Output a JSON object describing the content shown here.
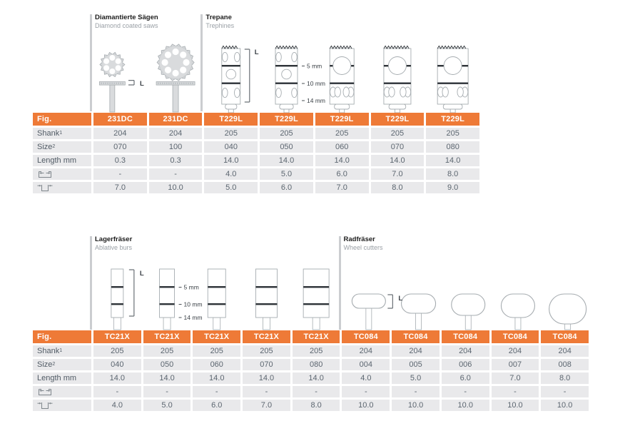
{
  "colors": {
    "accent": "#ee7a37",
    "cell_bg": "#e9e9eb",
    "cell_text": "#5c6670",
    "outline_gray": "#a6acb0",
    "fill_gray": "#d9dbdd",
    "dark_band": "#2e3338",
    "divider_gray": "#cbcdd0"
  },
  "row_labels": {
    "fig": "Fig.",
    "shank": "Shank",
    "shank_sup": "1",
    "size": "Size",
    "size_sup": "2",
    "length": "Length mm",
    "inner_icon": "inner-diameter-icon",
    "outer_icon": "outer-diameter-icon"
  },
  "annotations": {
    "length_label": "L",
    "depth_marks": [
      "5 mm",
      "10 mm",
      "14 mm"
    ]
  },
  "sections": [
    {
      "groups": [
        {
          "title": "Diamantierte Sägen",
          "subtitle": "Diamond coated saws",
          "figure": "diamond-saw",
          "span": 2
        },
        {
          "title": "Trepane",
          "subtitle": "Trephines",
          "figure": "trephine",
          "span": 5
        }
      ],
      "columns": [
        {
          "fig": "231DC",
          "shank": "204",
          "size": "070",
          "length": "0.3",
          "inner": "-",
          "outer": "7.0"
        },
        {
          "fig": "231DC",
          "shank": "204",
          "size": "100",
          "length": "0.3",
          "inner": "-",
          "outer": "10.0"
        },
        {
          "fig": "T229L",
          "shank": "205",
          "size": "040",
          "length": "14.0",
          "inner": "4.0",
          "outer": "5.0"
        },
        {
          "fig": "T229L",
          "shank": "205",
          "size": "050",
          "length": "14.0",
          "inner": "5.0",
          "outer": "6.0"
        },
        {
          "fig": "T229L",
          "shank": "205",
          "size": "060",
          "length": "14.0",
          "inner": "6.0",
          "outer": "7.0"
        },
        {
          "fig": "T229L",
          "shank": "205",
          "size": "070",
          "length": "14.0",
          "inner": "7.0",
          "outer": "8.0"
        },
        {
          "fig": "T229L",
          "shank": "205",
          "size": "080",
          "length": "14.0",
          "inner": "8.0",
          "outer": "9.0"
        }
      ]
    },
    {
      "groups": [
        {
          "title": "Lagerfräser",
          "subtitle": "Ablative burs",
          "figure": "ablative-bur",
          "span": 5
        },
        {
          "title": "Radfräser",
          "subtitle": "Wheel cutters",
          "figure": "wheel-cutter",
          "span": 5
        }
      ],
      "columns": [
        {
          "fig": "TC21X",
          "shank": "205",
          "size": "040",
          "length": "14.0",
          "inner": "-",
          "outer": "4.0"
        },
        {
          "fig": "TC21X",
          "shank": "205",
          "size": "050",
          "length": "14.0",
          "inner": "-",
          "outer": "5.0"
        },
        {
          "fig": "TC21X",
          "shank": "205",
          "size": "060",
          "length": "14.0",
          "inner": "-",
          "outer": "6.0"
        },
        {
          "fig": "TC21X",
          "shank": "205",
          "size": "070",
          "length": "14.0",
          "inner": "-",
          "outer": "7.0"
        },
        {
          "fig": "TC21X",
          "shank": "205",
          "size": "080",
          "length": "14.0",
          "inner": "-",
          "outer": "8.0"
        },
        {
          "fig": "TC084",
          "shank": "204",
          "size": "004",
          "length": "4.0",
          "inner": "-",
          "outer": "10.0"
        },
        {
          "fig": "TC084",
          "shank": "204",
          "size": "005",
          "length": "5.0",
          "inner": "-",
          "outer": "10.0"
        },
        {
          "fig": "TC084",
          "shank": "204",
          "size": "006",
          "length": "6.0",
          "inner": "-",
          "outer": "10.0"
        },
        {
          "fig": "TC084",
          "shank": "204",
          "size": "007",
          "length": "7.0",
          "inner": "-",
          "outer": "10.0"
        },
        {
          "fig": "TC084",
          "shank": "204",
          "size": "008",
          "length": "8.0",
          "inner": "-",
          "outer": "10.0"
        }
      ]
    }
  ]
}
